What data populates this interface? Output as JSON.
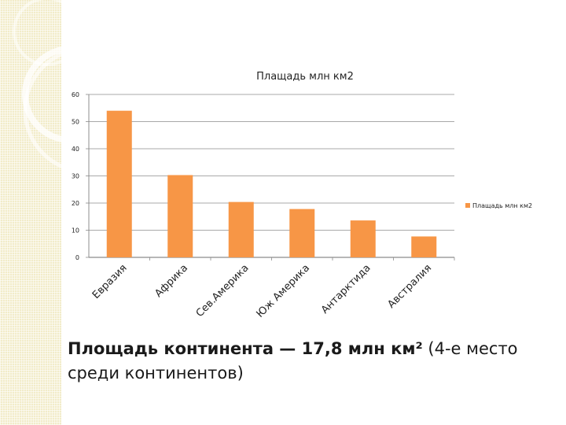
{
  "colors": {
    "bar": "#f79646",
    "grid": "#8c8c8c",
    "strip": "#f2ecc9",
    "text": "#1a1a1a"
  },
  "slide": {
    "text_bold": "Площадь континента — 17,8 млн км²",
    "text_regular": " (4-е место среди континентов)"
  },
  "chart_data": {
    "type": "bar",
    "title": "Плащадь млн км2",
    "categories": [
      "Евразия",
      "Африка",
      "Сев.Америка",
      "Юж Америка",
      "Антарктида",
      "Австралия"
    ],
    "series": [
      {
        "name": "Плащадь млн км2",
        "values": [
          54,
          30.3,
          20.4,
          17.8,
          13.6,
          7.7
        ]
      }
    ],
    "ylim": [
      0,
      60
    ],
    "yticks": [
      0,
      10,
      20,
      30,
      40,
      50,
      60
    ],
    "grid": true,
    "legend": "right"
  }
}
